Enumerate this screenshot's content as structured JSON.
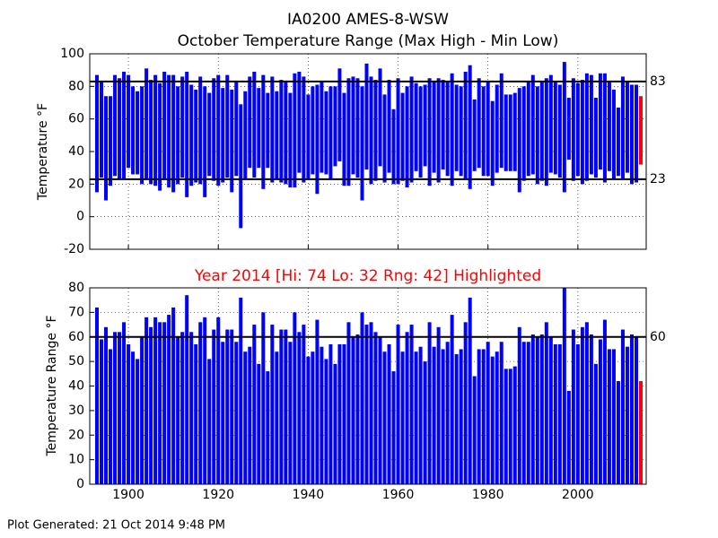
{
  "chart_data": [
    {
      "type": "floating_bar",
      "title": "IA0200 AMES-8-WSW",
      "subtitle": "October Temperature Range (Max High - Min Low)",
      "ylabel": "Temperature °F",
      "color": "#0000ff",
      "highlight_color": "#ff0000",
      "highlight": 2014,
      "xlim": [
        1891.4,
        2015.2
      ],
      "xticks": [
        1900,
        1920,
        1940,
        1960,
        1980,
        2000
      ],
      "show_xtick_labels": false,
      "ylim": [
        -20,
        100
      ],
      "yticks": [
        -20,
        0,
        20,
        40,
        60,
        80,
        100
      ],
      "grid": true,
      "hlines": [
        83,
        23
      ],
      "x": [
        1893,
        1894,
        1895,
        1896,
        1897,
        1898,
        1899,
        1900,
        1901,
        1902,
        1903,
        1904,
        1905,
        1906,
        1907,
        1908,
        1909,
        1910,
        1911,
        1912,
        1913,
        1914,
        1915,
        1916,
        1917,
        1918,
        1919,
        1920,
        1921,
        1922,
        1923,
        1924,
        1925,
        1926,
        1927,
        1928,
        1929,
        1930,
        1931,
        1932,
        1933,
        1934,
        1935,
        1936,
        1937,
        1938,
        1939,
        1940,
        1941,
        1942,
        1943,
        1944,
        1945,
        1946,
        1947,
        1948,
        1949,
        1950,
        1951,
        1952,
        1953,
        1954,
        1955,
        1956,
        1957,
        1958,
        1959,
        1960,
        1961,
        1962,
        1963,
        1964,
        1965,
        1966,
        1967,
        1968,
        1969,
        1970,
        1971,
        1972,
        1973,
        1974,
        1975,
        1976,
        1977,
        1978,
        1979,
        1980,
        1981,
        1982,
        1983,
        1984,
        1985,
        1986,
        1987,
        1988,
        1989,
        1990,
        1991,
        1992,
        1993,
        1994,
        1995,
        1996,
        1997,
        1998,
        1999,
        2000,
        2001,
        2002,
        2003,
        2004,
        2005,
        2006,
        2007,
        2008,
        2009,
        2010,
        2011,
        2012,
        2013,
        2014
      ],
      "highs": [
        87,
        83,
        74,
        74,
        87,
        85,
        89,
        87,
        80,
        77,
        80,
        91,
        84,
        87,
        82,
        89,
        87,
        87,
        80,
        86,
        89,
        81,
        78,
        86,
        80,
        76,
        85,
        87,
        79,
        87,
        78,
        83,
        69,
        77,
        86,
        89,
        79,
        87,
        76,
        86,
        77,
        84,
        83,
        76,
        88,
        89,
        86,
        75,
        80,
        81,
        83,
        77,
        80,
        80,
        91,
        76,
        85,
        86,
        85,
        80,
        94,
        86,
        84,
        91,
        75,
        84,
        66,
        85,
        76,
        80,
        86,
        82,
        80,
        81,
        85,
        83,
        85,
        84,
        83,
        88,
        81,
        80,
        89,
        93,
        72,
        85,
        80,
        83,
        71,
        81,
        88,
        75,
        75,
        76,
        79,
        80,
        83,
        87,
        80,
        83,
        85,
        87,
        83,
        81,
        95,
        73,
        85,
        82,
        84,
        88,
        87,
        73,
        88,
        88,
        83,
        78,
        67,
        86,
        83,
        81,
        81,
        74
      ],
      "lows": [
        15,
        24,
        10,
        19,
        25,
        23,
        23,
        30,
        26,
        26,
        20,
        23,
        20,
        19,
        16,
        23,
        18,
        15,
        20,
        24,
        12,
        19,
        21,
        20,
        12,
        25,
        22,
        19,
        21,
        24,
        15,
        25,
        -7,
        23,
        30,
        24,
        30,
        17,
        30,
        21,
        23,
        21,
        20,
        18,
        18,
        27,
        21,
        23,
        26,
        14,
        27,
        26,
        23,
        31,
        34,
        19,
        19,
        26,
        24,
        10,
        29,
        20,
        22,
        31,
        21,
        27,
        20,
        20,
        22,
        18,
        21,
        28,
        24,
        31,
        19,
        27,
        21,
        29,
        25,
        19,
        28,
        25,
        23,
        17,
        28,
        30,
        25,
        25,
        19,
        27,
        30,
        28,
        28,
        28,
        15,
        22,
        25,
        26,
        20,
        22,
        19,
        27,
        26,
        24,
        15,
        35,
        22,
        25,
        20,
        22,
        26,
        24,
        29,
        21,
        28,
        23,
        25,
        23,
        27,
        20,
        21,
        32
      ]
    },
    {
      "type": "bar",
      "subtitle": "Year 2014 [Hi: 74 Lo: 32 Rng: 42] Highlighted",
      "ylabel": "Temperature Range °F",
      "footer": "Plot Generated: 21 Oct 2014 9:48 PM",
      "color": "#0000ff",
      "highlight_color": "#ff0000",
      "highlight": 2014,
      "xlim": [
        1891.4,
        2015.2
      ],
      "xticks": [
        1900,
        1920,
        1940,
        1960,
        1980,
        2000
      ],
      "show_xtick_labels": true,
      "ylim": [
        0,
        80
      ],
      "yticks": [
        0,
        10,
        20,
        30,
        40,
        50,
        60,
        70,
        80
      ],
      "grid": true,
      "hlines": [
        60
      ],
      "x": [
        1893,
        1894,
        1895,
        1896,
        1897,
        1898,
        1899,
        1900,
        1901,
        1902,
        1903,
        1904,
        1905,
        1906,
        1907,
        1908,
        1909,
        1910,
        1911,
        1912,
        1913,
        1914,
        1915,
        1916,
        1917,
        1918,
        1919,
        1920,
        1921,
        1922,
        1923,
        1924,
        1925,
        1926,
        1927,
        1928,
        1929,
        1930,
        1931,
        1932,
        1933,
        1934,
        1935,
        1936,
        1937,
        1938,
        1939,
        1940,
        1941,
        1942,
        1943,
        1944,
        1945,
        1946,
        1947,
        1948,
        1949,
        1950,
        1951,
        1952,
        1953,
        1954,
        1955,
        1956,
        1957,
        1958,
        1959,
        1960,
        1961,
        1962,
        1963,
        1964,
        1965,
        1966,
        1967,
        1968,
        1969,
        1970,
        1971,
        1972,
        1973,
        1974,
        1975,
        1976,
        1977,
        1978,
        1979,
        1980,
        1981,
        1982,
        1983,
        1984,
        1985,
        1986,
        1987,
        1988,
        1989,
        1990,
        1991,
        1992,
        1993,
        1994,
        1995,
        1996,
        1997,
        1998,
        1999,
        2000,
        2001,
        2002,
        2003,
        2004,
        2005,
        2006,
        2007,
        2008,
        2009,
        2010,
        2011,
        2012,
        2013,
        2014
      ],
      "values": [
        72,
        59,
        64,
        55,
        62,
        62,
        66,
        57,
        54,
        51,
        60,
        68,
        64,
        68,
        66,
        66,
        69,
        72,
        60,
        62,
        77,
        62,
        57,
        66,
        68,
        51,
        63,
        68,
        58,
        63,
        63,
        58,
        76,
        54,
        56,
        65,
        49,
        70,
        46,
        65,
        54,
        63,
        63,
        58,
        70,
        62,
        65,
        52,
        54,
        67,
        56,
        51,
        57,
        49,
        57,
        57,
        66,
        60,
        61,
        70,
        65,
        66,
        62,
        60,
        54,
        57,
        46,
        65,
        54,
        62,
        65,
        54,
        56,
        50,
        66,
        56,
        64,
        55,
        58,
        69,
        53,
        55,
        66,
        76,
        44,
        55,
        55,
        58,
        52,
        54,
        58,
        47,
        47,
        48,
        64,
        58,
        58,
        61,
        60,
        61,
        66,
        60,
        57,
        57,
        80,
        38,
        63,
        57,
        64,
        66,
        61,
        49,
        59,
        67,
        55,
        55,
        42,
        63,
        56,
        61,
        60,
        42
      ]
    }
  ]
}
